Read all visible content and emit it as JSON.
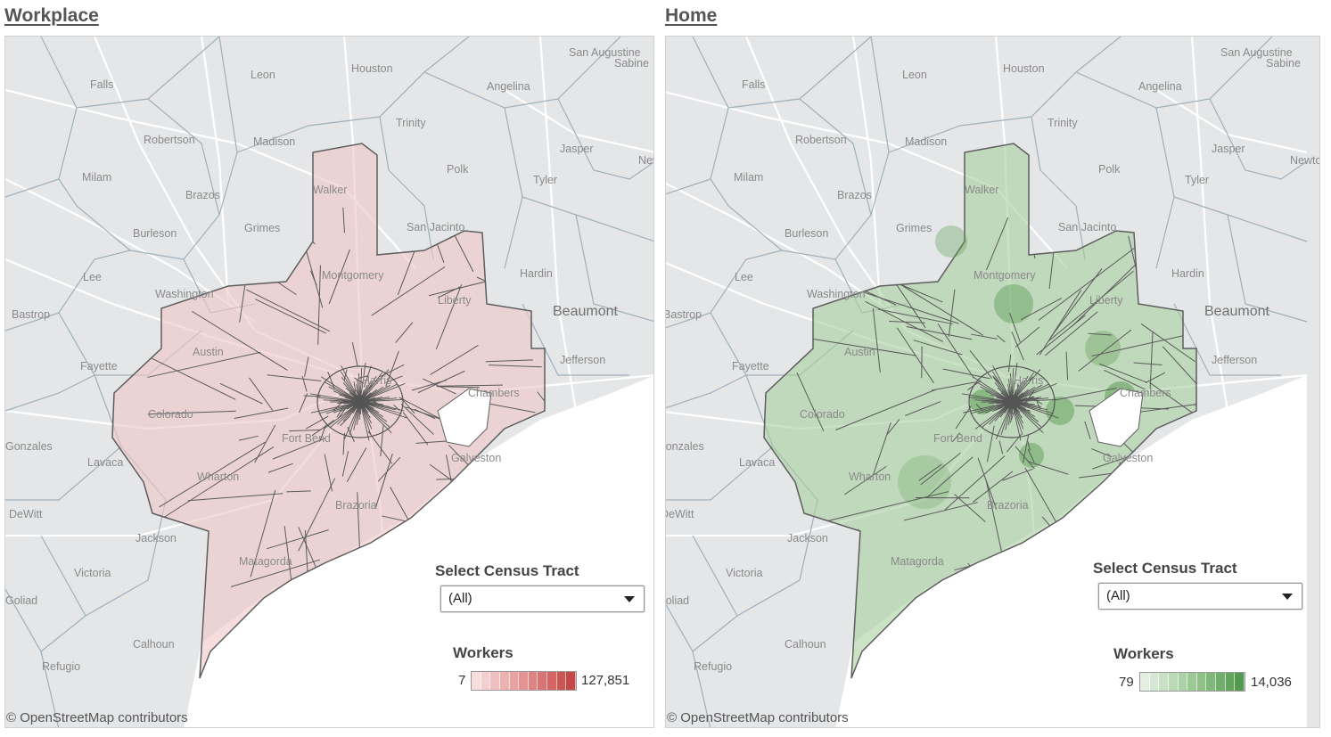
{
  "panels": [
    {
      "id": "workplace",
      "title": "Workplace",
      "filter": {
        "label": "Select Census Tract",
        "value": "(All)"
      },
      "legend": {
        "title": "Workers",
        "min": "7",
        "max": "127,851",
        "colors": [
          "#f6dede",
          "#f3cfcf",
          "#f0c0c0",
          "#ecb1b1",
          "#e8a2a2",
          "#e49393",
          "#df8484",
          "#d97474",
          "#d36565",
          "#cb5656",
          "#c44848"
        ]
      },
      "fill_color": "#f0c6c6",
      "attribution": "© OpenStreetMap contributors"
    },
    {
      "id": "home",
      "title": "Home",
      "filter": {
        "label": "Select Census Tract",
        "value": "(All)"
      },
      "legend": {
        "title": "Workers",
        "min": "79",
        "max": "14,036",
        "colors": [
          "#e4efe2",
          "#d6e8d3",
          "#c8e0c4",
          "#badab5",
          "#abd1a6",
          "#9dc997",
          "#8ec088",
          "#80b77a",
          "#71ad6c",
          "#62a35e",
          "#549950"
        ]
      },
      "fill_color": "#a8cf9f",
      "attribution": "© OpenStreetMap contributors"
    }
  ],
  "map_labels": {
    "counties": [
      "Falls",
      "Leon",
      "Houston",
      "San Augustine",
      "Angelina",
      "Sabine",
      "Robertson",
      "Madison",
      "Trinity",
      "Jasper",
      "Milam",
      "Brazos",
      "Walker",
      "Polk",
      "Tyler",
      "Newton",
      "Burleson",
      "Grimes",
      "San Jacinto",
      "Lee",
      "Washington",
      "Hardin",
      "Bastrop",
      "Montgomery",
      "Liberty",
      "Fayette",
      "Austin",
      "Jefferson",
      "Colorado",
      "Harris",
      "Chambers",
      "Gonzales",
      "Lavaca",
      "Fort Bend",
      "Galveston",
      "Wharton",
      "Brazoria",
      "DeWitt",
      "Jackson",
      "Matagorda",
      "Victoria",
      "Goliad",
      "Calhoun",
      "Refugio"
    ],
    "cities": [
      "Beaumont"
    ]
  }
}
